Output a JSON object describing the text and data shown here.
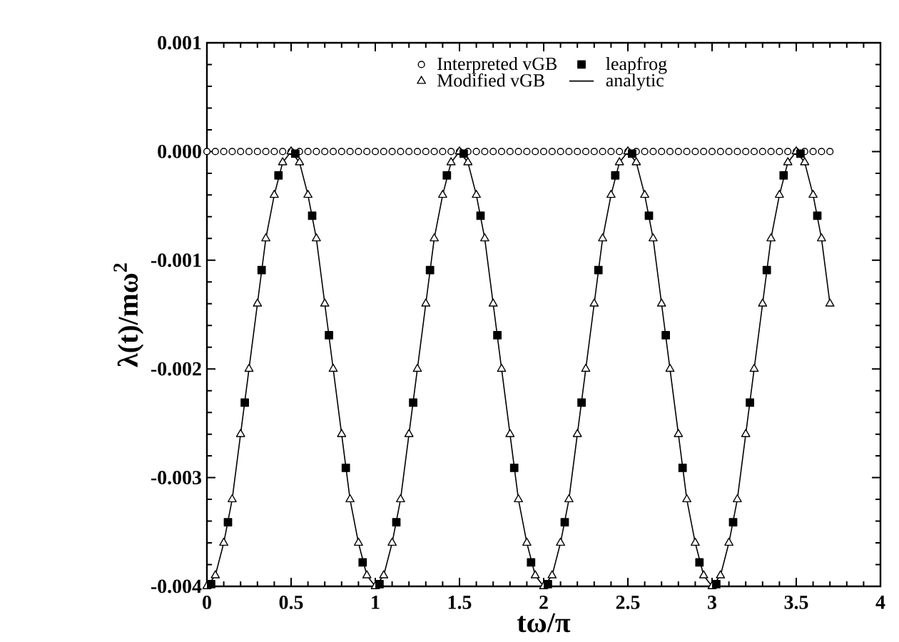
{
  "chart_data": {
    "type": "scatter",
    "xlabel": "tω/π",
    "ylabel": "λ(t)/mω$^{2}$",
    "xlim": [
      0,
      4
    ],
    "ylim": [
      -0.004,
      0.001
    ],
    "xticks": [
      0,
      0.5,
      1,
      1.5,
      2,
      2.5,
      3,
      3.5,
      4
    ],
    "yticks": [
      -0.004,
      -0.003,
      -0.002,
      -0.001,
      {
        "value": 0,
        "label": "0.000"
      },
      0.001
    ],
    "legend": "top",
    "x": [
      0,
      0.05,
      0.1,
      0.15,
      0.2,
      0.25,
      0.3,
      0.35,
      0.4,
      0.45,
      0.5,
      0.55,
      0.6,
      0.65,
      0.7,
      0.75,
      0.8,
      0.85,
      0.9,
      0.95,
      1,
      1.05,
      1.1,
      1.15,
      1.2,
      1.25,
      1.3,
      1.35,
      1.4,
      1.45,
      1.5,
      1.55,
      1.6,
      1.65,
      1.7,
      1.75,
      1.8,
      1.85,
      1.9,
      1.95,
      2,
      2.05,
      2.1,
      2.15,
      2.2,
      2.25,
      2.3,
      2.35,
      2.4,
      2.45,
      2.5,
      2.55,
      2.6,
      2.65,
      2.7,
      2.75,
      2.8,
      2.85,
      2.9,
      2.95,
      3,
      3.05,
      3.1,
      3.15,
      3.2,
      3.25,
      3.3,
      3.35,
      3.4,
      3.45,
      3.5,
      3.55,
      3.6,
      3.65,
      3.7
    ],
    "series": [
      {
        "name": "analytic",
        "type": "line",
        "marker": "none",
        "color": "#000000",
        "values": [
          -0.004,
          -0.0039,
          -0.0036,
          -0.0032,
          -0.0026,
          -0.002,
          -0.0014,
          -0.0008,
          -0.0004,
          -0.0001,
          0,
          -0.0001,
          -0.0004,
          -0.0008,
          -0.0014,
          -0.002,
          -0.0026,
          -0.0032,
          -0.0036,
          -0.0039,
          -0.004,
          -0.0039,
          -0.0036,
          -0.0032,
          -0.0026,
          -0.002,
          -0.0014,
          -0.0008,
          -0.0004,
          -0.0001,
          0,
          -0.0001,
          -0.0004,
          -0.0008,
          -0.0014,
          -0.002,
          -0.0026,
          -0.0032,
          -0.0036,
          -0.0039,
          -0.004,
          -0.0039,
          -0.0036,
          -0.0032,
          -0.0026,
          -0.002,
          -0.0014,
          -0.0008,
          -0.0004,
          -0.0001,
          0,
          -0.0001,
          -0.0004,
          -0.0008,
          -0.0014,
          -0.002,
          -0.0026,
          -0.0032,
          -0.0036,
          -0.0039,
          -0.004,
          -0.0039,
          -0.0036,
          -0.0032,
          -0.0026,
          -0.002,
          -0.0014,
          -0.0008,
          -0.0004,
          -0.0001,
          0,
          -0.0001,
          -0.0004,
          -0.0008,
          -0.0014
        ]
      },
      {
        "name": "Interpreted vGB",
        "marker": "circle",
        "color": "#000000",
        "values": [
          0,
          0,
          0,
          0,
          0,
          0,
          0,
          0,
          0,
          0,
          0,
          0,
          0,
          0,
          0,
          0,
          0,
          0,
          0,
          0,
          0,
          0,
          0,
          0,
          0,
          0,
          0,
          0,
          0,
          0,
          0,
          0,
          0,
          0,
          0,
          0,
          0,
          0,
          0,
          0,
          0,
          0,
          0,
          0,
          0,
          0,
          0,
          0,
          0,
          0,
          0,
          0,
          0,
          0,
          0,
          0,
          0,
          0,
          0,
          0,
          0,
          0,
          0,
          0,
          0,
          0,
          0,
          0,
          0,
          0,
          0,
          0,
          0,
          0,
          0
        ]
      },
      {
        "name": "Modified vGB",
        "marker": "triangle",
        "color": "#000000",
        "values": [
          -0.004,
          -0.0039,
          -0.0036,
          -0.0032,
          -0.0026,
          -0.002,
          -0.0014,
          -0.0008,
          -0.0004,
          -0.0001,
          0,
          -0.0001,
          -0.0004,
          -0.0008,
          -0.0014,
          -0.002,
          -0.0026,
          -0.0032,
          -0.0036,
          -0.0039,
          -0.004,
          -0.0039,
          -0.0036,
          -0.0032,
          -0.0026,
          -0.002,
          -0.0014,
          -0.0008,
          -0.0004,
          -0.0001,
          0,
          -0.0001,
          -0.0004,
          -0.0008,
          -0.0014,
          -0.002,
          -0.0026,
          -0.0032,
          -0.0036,
          -0.0039,
          -0.004,
          -0.0039,
          -0.0036,
          -0.0032,
          -0.0026,
          -0.002,
          -0.0014,
          -0.0008,
          -0.0004,
          -0.0001,
          0,
          -0.0001,
          -0.0004,
          -0.0008,
          -0.0014,
          -0.002,
          -0.0026,
          -0.0032,
          -0.0036,
          -0.0039,
          -0.004,
          -0.0039,
          -0.0036,
          -0.0032,
          -0.0026,
          -0.002,
          -0.0014,
          -0.0008,
          -0.0004,
          -0.0001,
          0,
          -0.0001,
          -0.0004,
          -0.0008,
          -0.0014
        ]
      },
      {
        "name": "leapfrog",
        "marker": "square",
        "color": "#000000",
        "x": [
          0.025,
          0.125,
          0.225,
          0.325,
          0.425,
          0.525,
          0.625,
          0.725,
          0.825,
          0.925,
          1.025,
          1.125,
          1.225,
          1.325,
          1.425,
          1.525,
          1.625,
          1.725,
          1.825,
          1.925,
          2.025,
          2.125,
          2.225,
          2.325,
          2.425,
          2.525,
          2.625,
          2.725,
          2.825,
          2.925,
          3.025,
          3.125,
          3.225,
          3.325,
          3.425,
          3.525,
          3.625
        ],
        "values": [
          -0.00398,
          -0.00341,
          -0.00231,
          -0.00109,
          -0.00022,
          -2e-05,
          -0.00059,
          -0.00169,
          -0.00291,
          -0.00378,
          -0.00398,
          -0.00341,
          -0.00231,
          -0.00109,
          -0.00022,
          -2e-05,
          -0.00059,
          -0.00169,
          -0.00291,
          -0.00378,
          -0.00398,
          -0.00341,
          -0.00231,
          -0.00109,
          -0.00022,
          -2e-05,
          -0.00059,
          -0.00169,
          -0.00291,
          -0.00378,
          -0.00398,
          -0.00341,
          -0.00231,
          -0.00109,
          -0.00022,
          -2e-05,
          -0.00059
        ]
      }
    ]
  }
}
